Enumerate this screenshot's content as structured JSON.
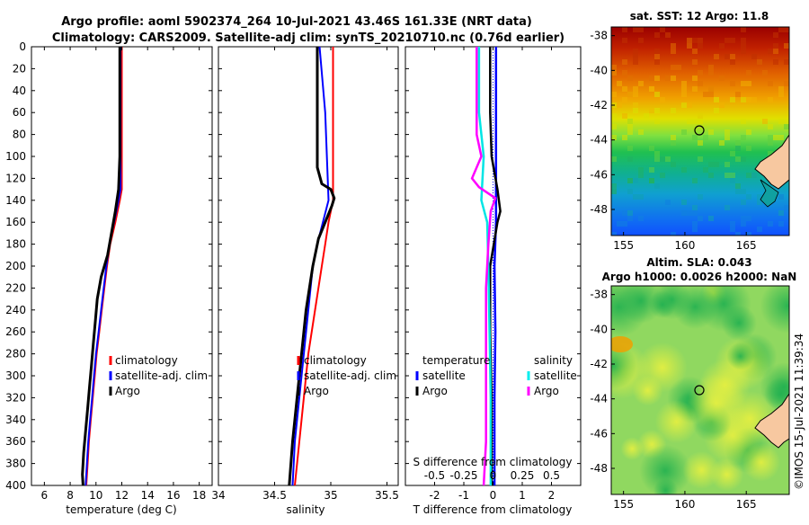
{
  "header": {
    "line1": "Argo profile: aoml 5902374_264 10-Jul-2021 43.46S 161.33E (NRT data)",
    "line2": "Climatology: CARS2009. Satellite-adj clim: synTS_20210710.nc (0.76d earlier)"
  },
  "depth_axis": {
    "ticks": [
      0,
      20,
      40,
      60,
      80,
      100,
      120,
      140,
      160,
      180,
      200,
      220,
      240,
      260,
      280,
      300,
      320,
      340,
      360,
      380,
      400
    ],
    "range": [
      0,
      400
    ]
  },
  "colors": {
    "climatology": "#ff0000",
    "satellite": "#0000ff",
    "argo": "#000000",
    "sat_diff": "#00e5e5",
    "argo_diff": "#ff00ff",
    "land": "#f7c8a0"
  },
  "chart_data": [
    {
      "type": "line",
      "id": "temperature",
      "xlabel": "temperature (deg C)",
      "xlim": [
        5,
        19
      ],
      "xticks": [
        6,
        8,
        10,
        12,
        14,
        16,
        18
      ],
      "ylim": [
        0,
        400
      ],
      "legend": [
        "climatology",
        "satellite-adj. clim",
        "Argo"
      ],
      "series": [
        {
          "name": "climatology",
          "depth": [
            0,
            130,
            140,
            160,
            180,
            200,
            220,
            240,
            260,
            280,
            300,
            320,
            340,
            360,
            380,
            400
          ],
          "values": [
            12.0,
            12.0,
            11.85,
            11.5,
            11.1,
            10.85,
            10.65,
            10.45,
            10.25,
            10.05,
            9.9,
            9.75,
            9.6,
            9.45,
            9.35,
            9.25
          ]
        },
        {
          "name": "satellite-adj. clim",
          "depth": [
            0,
            130,
            140,
            160,
            180,
            200,
            220,
            240,
            260,
            280,
            300,
            320,
            340,
            360,
            380,
            400
          ],
          "values": [
            11.9,
            11.9,
            11.75,
            11.4,
            11.05,
            10.8,
            10.6,
            10.4,
            10.2,
            10.0,
            9.85,
            9.7,
            9.55,
            9.4,
            9.3,
            9.2
          ]
        },
        {
          "name": "Argo",
          "depth": [
            0,
            100,
            130,
            150,
            170,
            190,
            210,
            230,
            250,
            270,
            290,
            310,
            330,
            350,
            370,
            390,
            400
          ],
          "values": [
            11.85,
            11.85,
            11.75,
            11.5,
            11.2,
            10.9,
            10.4,
            10.1,
            9.95,
            9.8,
            9.65,
            9.5,
            9.35,
            9.2,
            9.05,
            8.95,
            9.0
          ]
        }
      ]
    },
    {
      "type": "line",
      "id": "salinity",
      "xlabel": "salinity",
      "xlim": [
        34.0,
        35.6
      ],
      "xticks": [
        34,
        34.5,
        35,
        35.5
      ],
      "xtick_labels": [
        "34",
        "34.5",
        "35",
        "35.5"
      ],
      "ylim": [
        0,
        400
      ],
      "legend": [
        "climatology",
        "satellite-adj. clim",
        "Argo"
      ],
      "series": [
        {
          "name": "climatology",
          "depth": [
            0,
            140,
            160,
            180,
            200,
            240,
            280,
            320,
            360,
            400
          ],
          "values": [
            35.02,
            35.02,
            34.98,
            34.95,
            34.92,
            34.86,
            34.8,
            34.76,
            34.72,
            34.68
          ]
        },
        {
          "name": "satellite-adj. clim",
          "depth": [
            0,
            60,
            140,
            160,
            180,
            200,
            240,
            280,
            320,
            360,
            400
          ],
          "values": [
            34.9,
            34.95,
            34.98,
            34.93,
            34.88,
            34.84,
            34.8,
            34.76,
            34.72,
            34.68,
            34.66
          ]
        },
        {
          "name": "Argo",
          "depth": [
            0,
            60,
            110,
            125,
            130,
            138,
            145,
            160,
            175,
            200,
            240,
            280,
            320,
            360,
            400
          ],
          "values": [
            34.88,
            34.88,
            34.88,
            34.92,
            35.0,
            35.03,
            35.01,
            34.95,
            34.89,
            34.84,
            34.78,
            34.74,
            34.7,
            34.66,
            34.63
          ]
        }
      ]
    },
    {
      "type": "line",
      "id": "difference",
      "xlabel": "T difference from climatology",
      "xlabel_top": "S difference from climatology",
      "xlim": [
        -3,
        3
      ],
      "xticks": [
        -2,
        -1,
        0,
        1,
        2
      ],
      "s_xticks": [
        -0.5,
        -0.25,
        0,
        0.25,
        0.5
      ],
      "s_xtick_labels": [
        "-0.5",
        "-0.25",
        "0",
        "0.25",
        "0.5"
      ],
      "legend_temperature": {
        "title": "temperature",
        "entries": [
          "satellite",
          "Argo"
        ]
      },
      "legend_salinity": {
        "title": "salinity",
        "entries": [
          "satellite",
          "Argo"
        ]
      },
      "series": [
        {
          "name": "T satellite",
          "depth": [
            0,
            100,
            160,
            200,
            260,
            320,
            400
          ],
          "values": [
            0.1,
            0.1,
            0.1,
            0.05,
            0.08,
            0.05,
            0.05
          ]
        },
        {
          "name": "T Argo",
          "depth": [
            0,
            60,
            100,
            130,
            150,
            160,
            200,
            260,
            320,
            400
          ],
          "values": [
            -0.1,
            -0.1,
            -0.05,
            0.15,
            0.25,
            0.15,
            -0.1,
            -0.1,
            -0.05,
            -0.05
          ]
        },
        {
          "name": "S satellite",
          "depth": [
            0,
            60,
            100,
            140,
            160,
            200,
            260,
            320,
            400
          ],
          "values": [
            -0.12,
            -0.12,
            -0.08,
            -0.1,
            -0.05,
            -0.04,
            -0.03,
            -0.02,
            -0.02
          ]
        },
        {
          "name": "S Argo",
          "depth": [
            0,
            80,
            100,
            120,
            128,
            138,
            150,
            180,
            220,
            260,
            320,
            360,
            400
          ],
          "values": [
            -0.14,
            -0.14,
            -0.1,
            -0.18,
            -0.12,
            0.02,
            -0.02,
            -0.04,
            -0.06,
            -0.06,
            -0.06,
            -0.06,
            -0.08
          ]
        }
      ]
    },
    {
      "type": "heatmap",
      "id": "sst_map",
      "title": "sat. SST: 12 Argo: 11.8",
      "xticks": [
        155,
        160,
        165
      ],
      "yticks": [
        -38,
        -40,
        -42,
        -44,
        -46,
        -48
      ],
      "xlim": [
        154,
        168.5
      ],
      "ylim": [
        -49.5,
        -37.5
      ],
      "argo_position": {
        "lon": 161.33,
        "lat": -43.46
      }
    },
    {
      "type": "heatmap",
      "id": "sla_map",
      "title1": "Altim. SLA: 0.043",
      "title2": "Argo h1000: 0.0026 h2000: NaN",
      "xticks": [
        155,
        160,
        165
      ],
      "yticks": [
        -38,
        -40,
        -42,
        -44,
        -46,
        -48
      ],
      "xlim": [
        154,
        168.5
      ],
      "ylim": [
        -49.5,
        -37.5
      ],
      "argo_position": {
        "lon": 161.33,
        "lat": -43.46
      }
    }
  ],
  "footer": {
    "stamp": "©IMOS 15-Jul-2021 11:39:34"
  }
}
